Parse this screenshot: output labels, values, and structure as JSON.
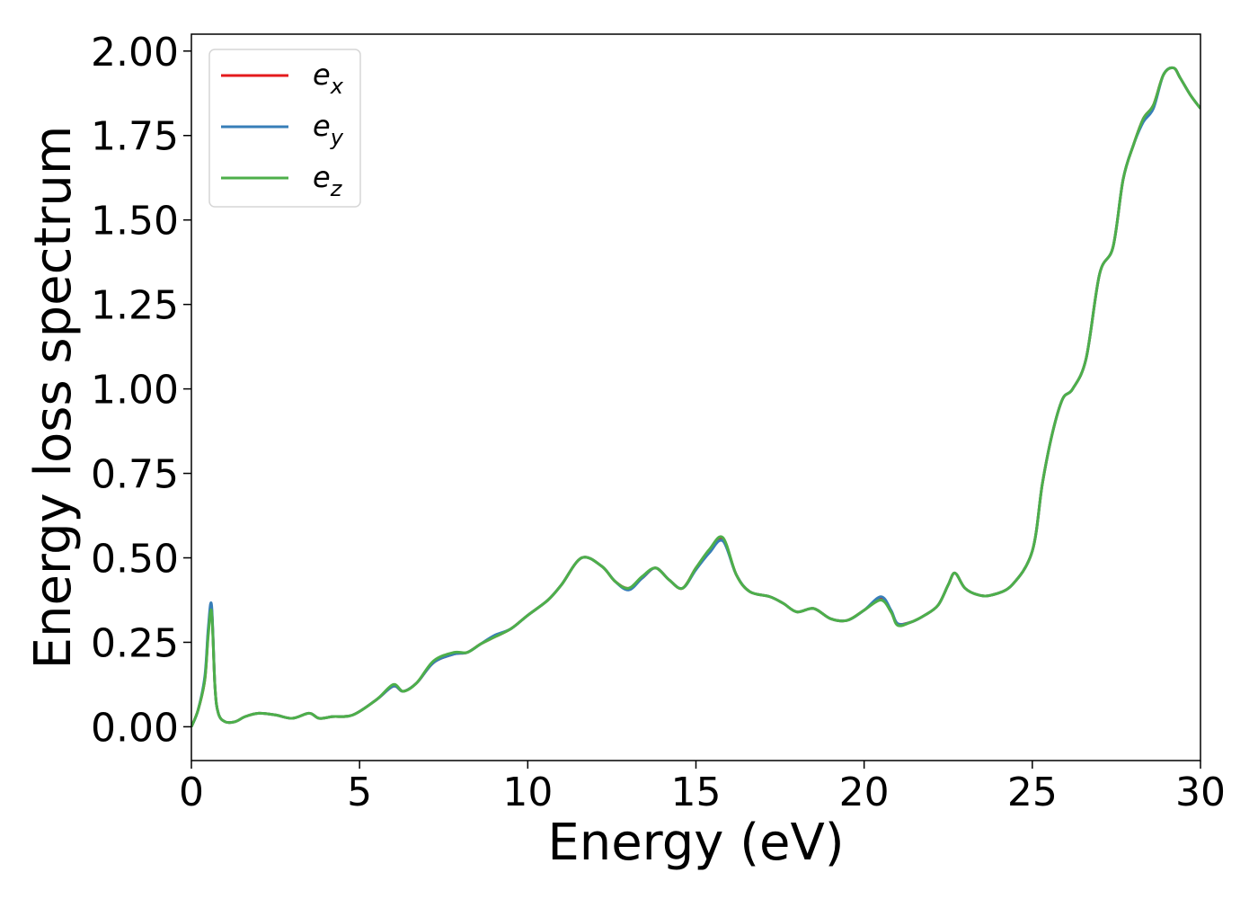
{
  "chart_data": {
    "type": "line",
    "title": "",
    "xlabel": "Energy (eV)",
    "ylabel": "Energy loss spectrum",
    "xlim": [
      0,
      30
    ],
    "ylim": [
      -0.1,
      2.05
    ],
    "xticks": [
      0,
      5,
      10,
      15,
      20,
      25,
      30
    ],
    "xtick_labels": [
      "0",
      "5",
      "10",
      "15",
      "20",
      "25",
      "30"
    ],
    "yticks": [
      0.0,
      0.25,
      0.5,
      0.75,
      1.0,
      1.25,
      1.5,
      1.75,
      2.0
    ],
    "ytick_labels": [
      "0.00",
      "0.25",
      "0.50",
      "0.75",
      "1.00",
      "1.25",
      "1.50",
      "1.75",
      "2.00"
    ],
    "grid": false,
    "legend_position": "top-left",
    "series": [
      {
        "name": "e_x",
        "legend_base": "e",
        "legend_sub": "x",
        "color": "#e41a1c",
        "x": [
          0,
          0.2,
          0.4,
          0.5,
          0.6,
          0.7,
          0.8,
          1.0,
          1.3,
          1.6,
          2.0,
          2.5,
          3.0,
          3.5,
          3.8,
          4.2,
          4.8,
          5.5,
          6.0,
          6.3,
          6.7,
          7.2,
          7.8,
          8.2,
          8.6,
          9.0,
          9.5,
          10.0,
          10.6,
          11.0,
          11.6,
          12.2,
          12.6,
          13.0,
          13.4,
          13.8,
          14.2,
          14.6,
          15.0,
          15.4,
          15.8,
          16.2,
          16.6,
          17.2,
          17.6,
          18.0,
          18.5,
          19.0,
          19.5,
          20.0,
          20.5,
          20.8,
          21.0,
          21.4,
          21.8,
          22.2,
          22.5,
          22.7,
          23.0,
          23.4,
          23.8,
          24.4,
          25.0,
          25.3,
          25.6,
          25.9,
          26.2,
          26.6,
          27.0,
          27.4,
          27.7,
          28.0,
          28.3,
          28.6,
          28.9,
          29.2,
          29.4,
          29.7,
          30.0
        ],
        "y": [
          0.0,
          0.05,
          0.14,
          0.28,
          0.35,
          0.12,
          0.04,
          0.015,
          0.015,
          0.03,
          0.04,
          0.035,
          0.025,
          0.04,
          0.025,
          0.03,
          0.035,
          0.08,
          0.12,
          0.105,
          0.13,
          0.19,
          0.215,
          0.22,
          0.245,
          0.265,
          0.29,
          0.33,
          0.375,
          0.42,
          0.5,
          0.475,
          0.43,
          0.41,
          0.44,
          0.47,
          0.435,
          0.41,
          0.47,
          0.52,
          0.555,
          0.45,
          0.4,
          0.385,
          0.365,
          0.34,
          0.35,
          0.32,
          0.315,
          0.345,
          0.38,
          0.34,
          0.305,
          0.31,
          0.33,
          0.36,
          0.42,
          0.455,
          0.41,
          0.39,
          0.39,
          0.42,
          0.52,
          0.72,
          0.87,
          0.97,
          1.0,
          1.09,
          1.34,
          1.42,
          1.62,
          1.72,
          1.8,
          1.84,
          1.93,
          1.95,
          1.92,
          1.87,
          1.83
        ]
      },
      {
        "name": "e_y",
        "legend_base": "e",
        "legend_sub": "y",
        "color": "#377eb8",
        "x": [
          0,
          0.2,
          0.4,
          0.5,
          0.6,
          0.7,
          0.8,
          1.0,
          1.3,
          1.6,
          2.0,
          2.5,
          3.0,
          3.5,
          3.8,
          4.2,
          4.8,
          5.5,
          6.0,
          6.3,
          6.7,
          7.2,
          7.8,
          8.2,
          8.6,
          9.0,
          9.5,
          10.0,
          10.6,
          11.0,
          11.6,
          12.2,
          12.6,
          13.0,
          13.4,
          13.8,
          14.2,
          14.6,
          15.0,
          15.4,
          15.8,
          16.2,
          16.6,
          17.2,
          17.6,
          18.0,
          18.5,
          19.0,
          19.5,
          20.0,
          20.5,
          20.8,
          21.0,
          21.4,
          21.8,
          22.2,
          22.5,
          22.7,
          23.0,
          23.4,
          23.8,
          24.4,
          25.0,
          25.3,
          25.6,
          25.9,
          26.2,
          26.6,
          27.0,
          27.4,
          27.7,
          28.0,
          28.3,
          28.6,
          28.9,
          29.2,
          29.4,
          29.7,
          30.0
        ],
        "y": [
          0.0,
          0.05,
          0.15,
          0.29,
          0.36,
          0.12,
          0.04,
          0.015,
          0.015,
          0.03,
          0.04,
          0.035,
          0.025,
          0.04,
          0.025,
          0.03,
          0.035,
          0.08,
          0.12,
          0.105,
          0.13,
          0.19,
          0.215,
          0.22,
          0.245,
          0.27,
          0.29,
          0.33,
          0.375,
          0.42,
          0.5,
          0.475,
          0.43,
          0.405,
          0.44,
          0.47,
          0.435,
          0.41,
          0.465,
          0.515,
          0.55,
          0.45,
          0.4,
          0.385,
          0.365,
          0.34,
          0.35,
          0.32,
          0.315,
          0.345,
          0.385,
          0.345,
          0.305,
          0.31,
          0.33,
          0.36,
          0.42,
          0.455,
          0.41,
          0.39,
          0.39,
          0.42,
          0.52,
          0.72,
          0.87,
          0.97,
          1.0,
          1.09,
          1.34,
          1.42,
          1.62,
          1.72,
          1.79,
          1.83,
          1.93,
          1.95,
          1.92,
          1.87,
          1.83
        ]
      },
      {
        "name": "e_z",
        "legend_base": "e",
        "legend_sub": "z",
        "color": "#4daf4a",
        "x": [
          0,
          0.2,
          0.4,
          0.5,
          0.6,
          0.7,
          0.8,
          1.0,
          1.3,
          1.6,
          2.0,
          2.5,
          3.0,
          3.5,
          3.8,
          4.2,
          4.8,
          5.5,
          6.0,
          6.3,
          6.7,
          7.2,
          7.8,
          8.2,
          8.6,
          9.0,
          9.5,
          10.0,
          10.6,
          11.0,
          11.6,
          12.2,
          12.6,
          13.0,
          13.4,
          13.8,
          14.2,
          14.6,
          15.0,
          15.4,
          15.8,
          16.2,
          16.6,
          17.2,
          17.6,
          18.0,
          18.5,
          19.0,
          19.5,
          20.0,
          20.5,
          20.8,
          21.0,
          21.4,
          21.8,
          22.2,
          22.5,
          22.7,
          23.0,
          23.4,
          23.8,
          24.4,
          25.0,
          25.3,
          25.6,
          25.9,
          26.2,
          26.6,
          27.0,
          27.4,
          27.7,
          28.0,
          28.3,
          28.6,
          28.9,
          29.2,
          29.4,
          29.7,
          30.0
        ],
        "y": [
          0.0,
          0.05,
          0.14,
          0.27,
          0.34,
          0.12,
          0.04,
          0.015,
          0.015,
          0.03,
          0.04,
          0.035,
          0.025,
          0.04,
          0.025,
          0.03,
          0.035,
          0.08,
          0.125,
          0.105,
          0.13,
          0.195,
          0.22,
          0.22,
          0.245,
          0.265,
          0.29,
          0.33,
          0.375,
          0.42,
          0.5,
          0.475,
          0.43,
          0.41,
          0.445,
          0.47,
          0.435,
          0.41,
          0.47,
          0.525,
          0.56,
          0.45,
          0.4,
          0.385,
          0.365,
          0.34,
          0.35,
          0.32,
          0.315,
          0.345,
          0.375,
          0.34,
          0.3,
          0.31,
          0.33,
          0.36,
          0.42,
          0.455,
          0.41,
          0.39,
          0.39,
          0.42,
          0.52,
          0.72,
          0.87,
          0.97,
          1.0,
          1.09,
          1.34,
          1.42,
          1.62,
          1.72,
          1.8,
          1.84,
          1.93,
          1.95,
          1.92,
          1.87,
          1.83
        ]
      }
    ]
  }
}
